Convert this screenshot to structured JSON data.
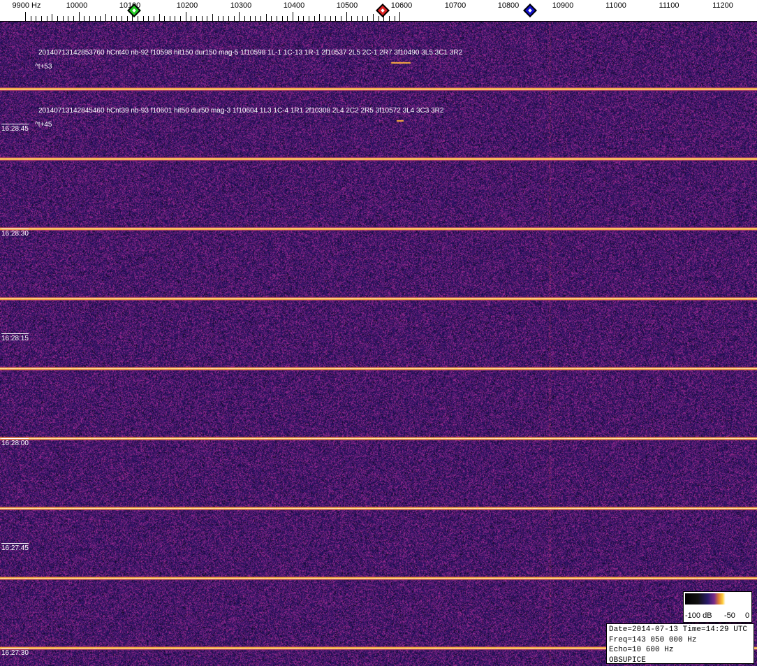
{
  "axis": {
    "unit_label": "9900 Hz",
    "labels": [
      "10000",
      "10100",
      "10200",
      "10300",
      "10400",
      "10500",
      "10600",
      "10700",
      "10800",
      "10900",
      "11000",
      "11100",
      "11200"
    ],
    "markers": [
      {
        "name": "green",
        "color": "#22cc22",
        "freq_hz": 10100
      },
      {
        "name": "red",
        "color": "#dd2222",
        "freq_hz": 10565
      },
      {
        "name": "blue",
        "color": "#1010cc",
        "freq_hz": 10840
      }
    ]
  },
  "annotations": [
    {
      "text": "20140713142853760 hCnt40 nb-92 f10598 hit150 dur150 mag-5 1f10598 1L-1 1C-13 1R-1 2f10537 2L5 2C-1 2R7 3f10490 3L5 3C1 3R2",
      "offset": "^t+53"
    },
    {
      "text": "20140713142845460 hCnt39 nb-93 f10601 hit50 dur50 mag-3 1f10604 1L3 1C-4 1R1 2f10308 2L4 2C2 2R5 3f10572 3L4 3C3 3R2",
      "offset": "^t+45"
    }
  ],
  "time_labels": [
    "16:28:45",
    "16:28:30",
    "16:28:15",
    "16:28:00",
    "16:27:45",
    "16:27:30"
  ],
  "colorbar": {
    "labels": [
      "-100 dB",
      "-50",
      "0"
    ]
  },
  "info": {
    "line1": "Date=2014-07-13 Time=14:29 UTC",
    "line2": "Freq=143 050 000 Hz",
    "line3": "Echo=10 600 Hz",
    "line4": "OBSUPICE"
  }
}
